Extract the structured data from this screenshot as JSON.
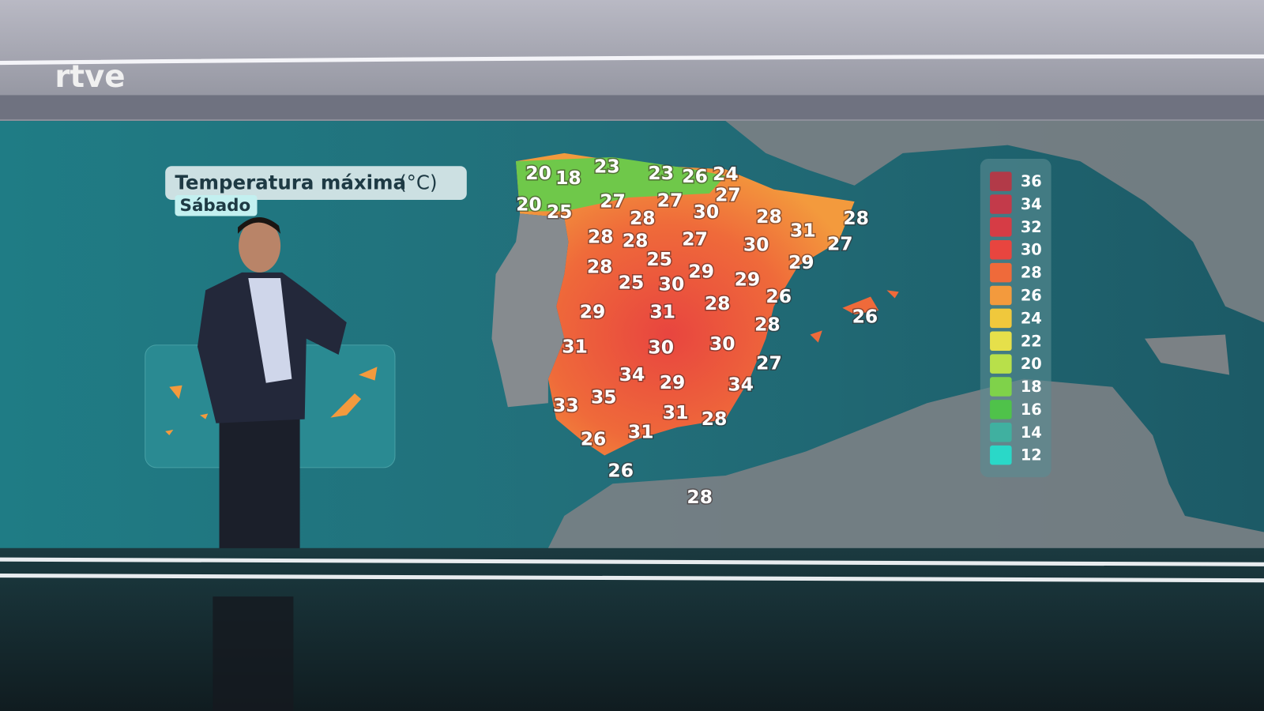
{
  "logo": "rtve",
  "title": "Temperatura máxima",
  "unit": "(°C)",
  "day": "Sábado",
  "map_labels": [
    20,
    18,
    23,
    23,
    26,
    24,
    20,
    25,
    27,
    27,
    27,
    28,
    30,
    28,
    31,
    28,
    27,
    28,
    28,
    27,
    30,
    25,
    29,
    28,
    29,
    29,
    25,
    30,
    26,
    28,
    29,
    31,
    26,
    28,
    31,
    30,
    30,
    27,
    34,
    29,
    34,
    35,
    33,
    31,
    28,
    31,
    26,
    26,
    28
  ],
  "legend": [
    {
      "value": 36,
      "color": "#b23a48"
    },
    {
      "value": 34,
      "color": "#c33a4a"
    },
    {
      "value": 32,
      "color": "#d63c45"
    },
    {
      "value": 30,
      "color": "#e8453f"
    },
    {
      "value": 28,
      "color": "#ef6a3a"
    },
    {
      "value": 26,
      "color": "#f39a3d"
    },
    {
      "value": 24,
      "color": "#f0c83c"
    },
    {
      "value": 22,
      "color": "#e6e04a"
    },
    {
      "value": 20,
      "color": "#b8e04a"
    },
    {
      "value": 18,
      "color": "#7fd24a"
    },
    {
      "value": 16,
      "color": "#4fc24a"
    },
    {
      "value": 14,
      "color": "#40b0a0"
    },
    {
      "value": 12,
      "color": "#2ad8c8"
    }
  ]
}
